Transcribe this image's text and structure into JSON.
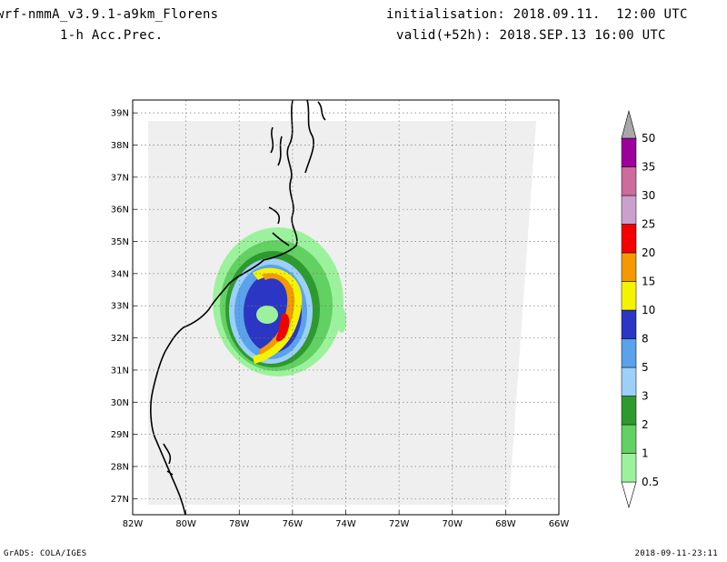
{
  "header": {
    "model": "wrf-nmmA_v3.9.1-a9km_Florens",
    "field": "1-h Acc.Prec.",
    "init": "initialisation: 2018.09.11.  12:00 UTC",
    "valid": "valid(+52h): 2018.SEP.13 16:00 UTC"
  },
  "footer": {
    "left": "GrADS: COLA/IGES",
    "right": "2018-09-11-23:11"
  },
  "map": {
    "lat_labels": [
      "39N",
      "38N",
      "37N",
      "36N",
      "35N",
      "34N",
      "33N",
      "32N",
      "31N",
      "30N",
      "29N",
      "28N",
      "27N"
    ],
    "lon_labels": [
      "82W",
      "80W",
      "78W",
      "76W",
      "74W",
      "72W",
      "70W",
      "68W",
      "66W"
    ],
    "lat_values": [
      39,
      38,
      37,
      36,
      35,
      34,
      33,
      32,
      31,
      30,
      29,
      28,
      27
    ],
    "lon_values": [
      -82,
      -80,
      -78,
      -76,
      -74,
      -72,
      -70,
      -68,
      -66
    ],
    "lat_range": [
      26.5,
      39.4
    ],
    "lon_range": [
      -82,
      -66
    ],
    "domain_fill": "#efefef",
    "grid": true
  },
  "colorbar": {
    "levels": [
      "0.5",
      "1",
      "2",
      "3",
      "5",
      "8",
      "10",
      "15",
      "20",
      "25",
      "30",
      "35",
      "50"
    ],
    "colors": [
      "#9cf29c",
      "#62d062",
      "#2e9a2e",
      "#9cd0f8",
      "#5aa2ea",
      "#2c36c4",
      "#f4f400",
      "#f49a00",
      "#f40000",
      "#cca0cc",
      "#cc6c9c",
      "#9c009c",
      "#a8a8a8"
    ]
  }
}
